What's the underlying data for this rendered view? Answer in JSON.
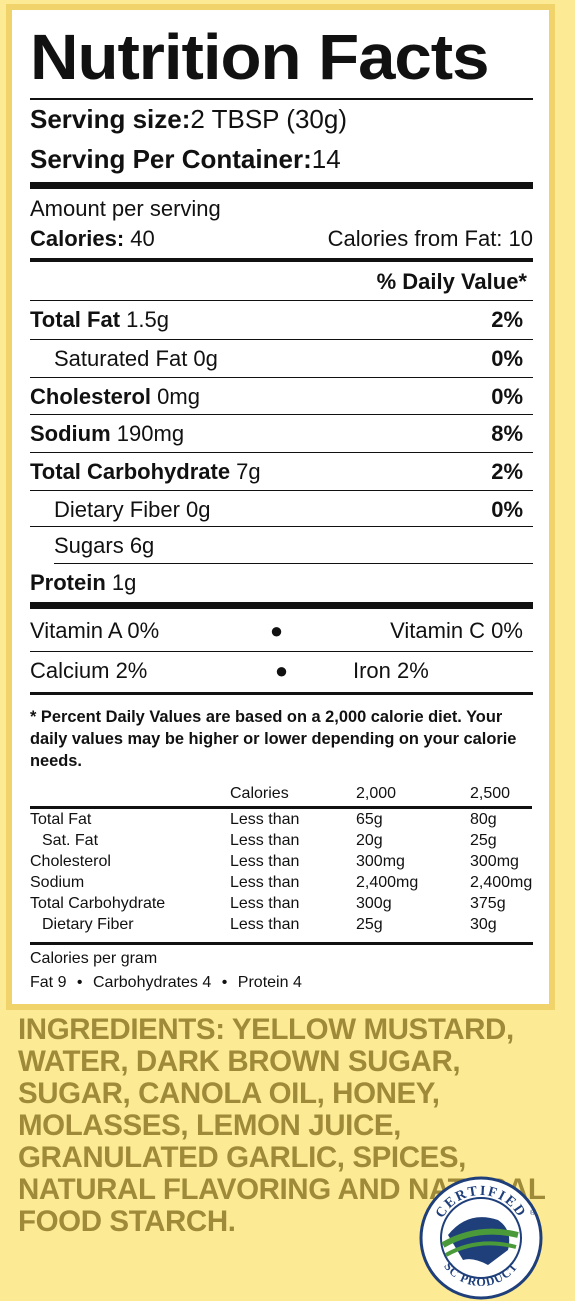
{
  "title": "Nutrition Facts",
  "serving": {
    "size_label": "Serving size:",
    "size_value": " 2 TBSP (30g)",
    "per_container_label": "Serving Per Container:",
    "per_container_value": " 14"
  },
  "amount_label": "Amount per serving",
  "calories": {
    "label": "Calories:",
    "value": " 40",
    "from_fat": "Calories from Fat: 10"
  },
  "dv_header": "% Daily Value*",
  "nutrients": [
    {
      "name": "Total Fat",
      "amount": " 1.5g",
      "dv": "2%"
    },
    {
      "name": "Saturated Fat 0g",
      "amount": "",
      "dv": "0%"
    },
    {
      "name": "Cholesterol",
      "amount": " 0mg",
      "dv": "0%"
    },
    {
      "name": "Sodium",
      "amount": " 190mg",
      "dv": "8%"
    },
    {
      "name": "Total Carbohydrate",
      "amount": " 7g",
      "dv": "2%"
    },
    {
      "name": "Dietary Fiber 0g",
      "amount": "",
      "dv": "0%"
    },
    {
      "name": "Sugars 6g",
      "amount": "",
      "dv": ""
    },
    {
      "name": "Protein",
      "amount": " 1g",
      "dv": ""
    }
  ],
  "vitamins": {
    "a": "Vitamin A 0%",
    "c": "Vitamin C 0%",
    "calcium": "Calcium 2%",
    "iron": "Iron 2%",
    "bullet": "●"
  },
  "footnote": "* Percent Daily Values are based on a 2,000 calorie diet. Your daily values may be higher or lower depending on your calorie needs.",
  "dv_table": {
    "headers": [
      "",
      "Calories",
      "2,000",
      "2,500"
    ],
    "rows": [
      [
        "Total Fat",
        "Less than",
        "65g",
        "80g"
      ],
      [
        "Sat. Fat",
        "Less than",
        "20g",
        "25g"
      ],
      [
        "Cholesterol",
        "Less than",
        "300mg",
        "300mg"
      ],
      [
        "Sodium",
        "Less than",
        "2,400mg",
        "2,400mg"
      ],
      [
        "Total Carbohydrate",
        "Less than",
        "300g",
        "375g"
      ],
      [
        "Dietary Fiber",
        "Less than",
        "25g",
        "30g"
      ]
    ]
  },
  "cal_per_gram_label": "Calories per gram",
  "cal_per_gram": {
    "fat": "Fat 9",
    "carb": "Carbohydrates 4",
    "protein": "Protein 4",
    "bullet": "•"
  },
  "ingredients": "INGREDIENTS: YELLOW MUSTARD, WATER, DARK BROWN SUGAR, SUGAR, CANOLA OIL, HONEY, MOLASSES, LEMON JUICE, GRANULATED GARLIC, SPICES, NATURAL FLAVORING AND NATURAL FOOD STARCH.",
  "seal": {
    "top_text": "CERTIFIED",
    "bottom_text": "SC PRODUCT",
    "mark": "®"
  },
  "colors": {
    "background": "#fcea95",
    "border": "#f0d36a",
    "ingredients": "#9e8a38",
    "seal_blue": "#1f3f7a",
    "seal_green": "#4a9a3a"
  }
}
